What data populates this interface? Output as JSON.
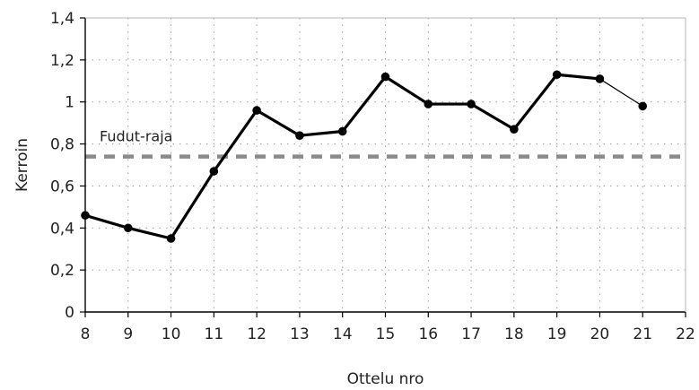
{
  "chart_data": {
    "type": "line",
    "title": "",
    "xlabel": "Ottelu nro",
    "ylabel": "Kerroin",
    "xlim": [
      8,
      22
    ],
    "ylim": [
      0,
      1.4
    ],
    "x_ticks": [
      "8",
      "9",
      "10",
      "11",
      "12",
      "13",
      "14",
      "15",
      "16",
      "17",
      "18",
      "19",
      "20",
      "21",
      "22"
    ],
    "y_ticks": [
      "0",
      "0,2",
      "0,4",
      "0,6",
      "0,8",
      "1",
      "1,2",
      "1,4"
    ],
    "grid": true,
    "legend": "none",
    "series": [
      {
        "x": [
          8,
          9,
          10,
          11,
          12,
          13,
          14,
          15,
          16,
          17,
          18,
          19,
          20,
          21
        ],
        "y": [
          0.46,
          0.4,
          0.35,
          0.67,
          0.96,
          0.84,
          0.86,
          1.12,
          0.99,
          0.99,
          0.87,
          1.13,
          1.11,
          0.98
        ],
        "color": "#000000"
      }
    ],
    "reference_line": {
      "label": "Fudut-raja",
      "y": 0.74,
      "color": "#8a8a8a"
    }
  }
}
